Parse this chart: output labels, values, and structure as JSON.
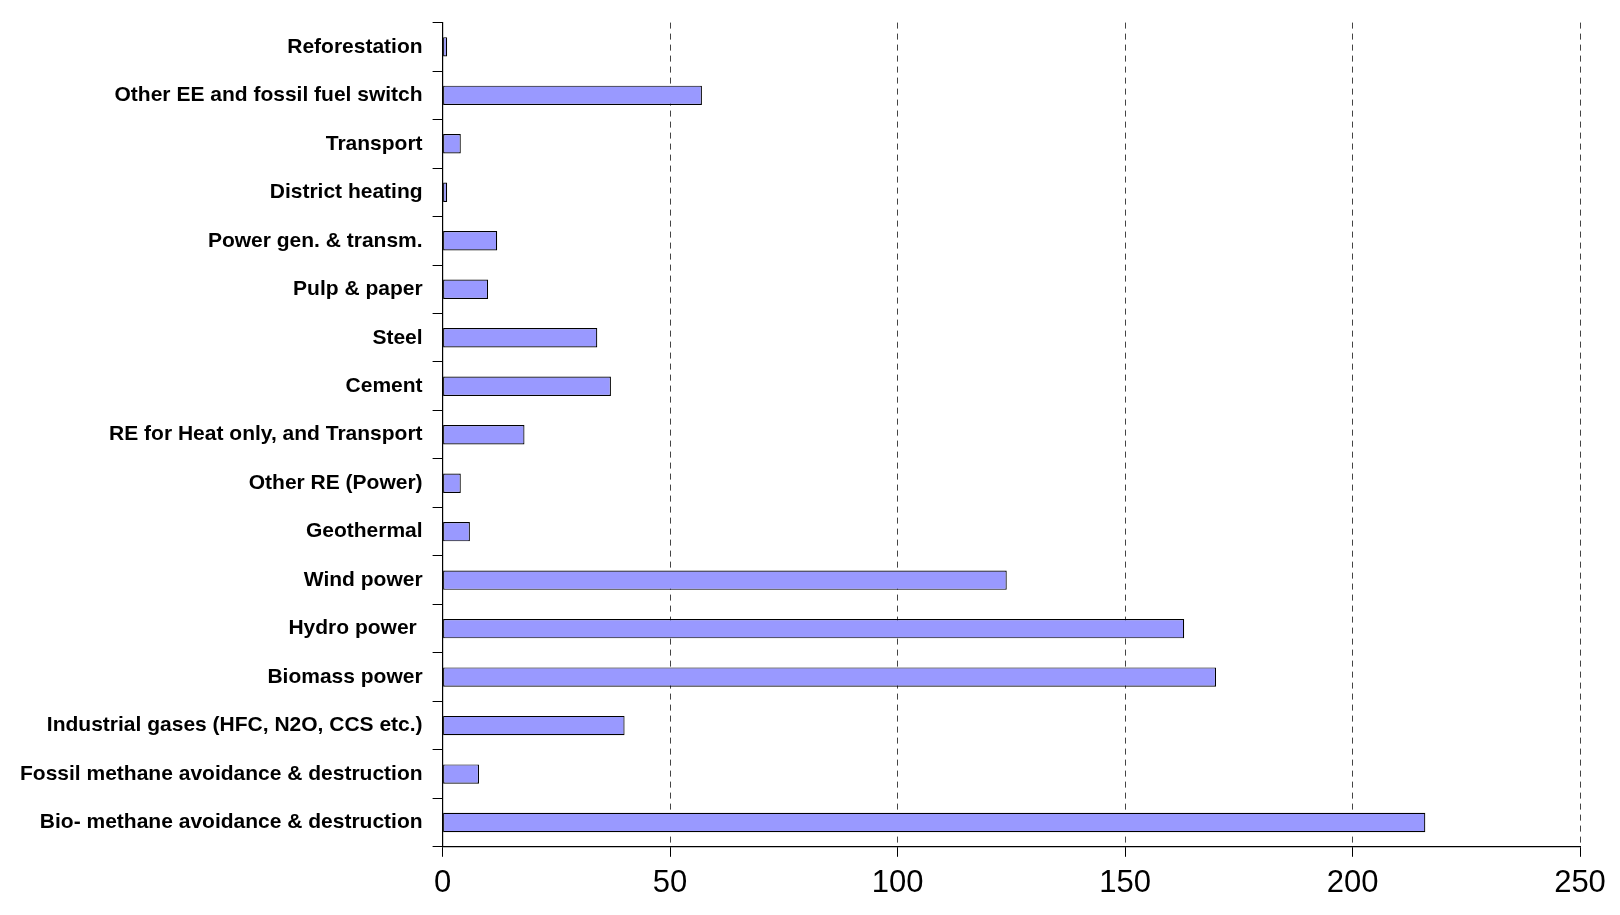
{
  "chart_data": {
    "type": "bar",
    "orientation": "horizontal",
    "categories": [
      "Reforestation",
      "Other EE and fossil fuel switch",
      "Transport",
      "District heating",
      "Power gen. & transm.",
      "Pulp & paper",
      "Steel",
      "Cement",
      "RE for Heat only, and Transport",
      "Other RE (Power)",
      "Geothermal",
      "Wind power",
      "Hydro power ",
      "Biomass power",
      "Industrial gases (HFC, N2O, CCS etc.)",
      "Fossil methane avoidance & destruction",
      "Bio- methane avoidance & destruction"
    ],
    "values": [
      1,
      57,
      4,
      1,
      12,
      10,
      34,
      37,
      18,
      4,
      6,
      124,
      163,
      170,
      40,
      8,
      216
    ],
    "color": "#9999ff",
    "xlim": [
      0,
      250
    ],
    "xticks": [
      0,
      50,
      100,
      150,
      200,
      250
    ],
    "grid": "x"
  }
}
